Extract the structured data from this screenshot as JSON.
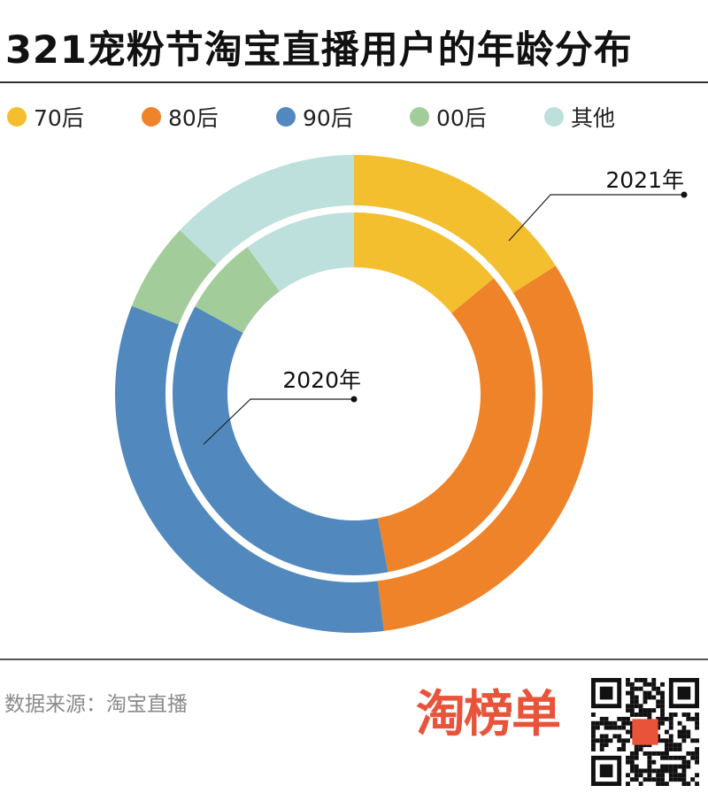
{
  "title": "321宠粉节淘宝直播用户的年龄分布",
  "chart_data": {
    "type": "pie",
    "subtype": "nested-donut",
    "title": "321宠粉节淘宝直播用户的年龄分布",
    "categories": [
      "70后",
      "80后",
      "90后",
      "00后",
      "其他"
    ],
    "colors": [
      "#f4bf2f",
      "#ee8329",
      "#5189be",
      "#a3cc9b",
      "#bde0dc"
    ],
    "series": [
      {
        "name": "2021年",
        "ring": "outer",
        "values": [
          16,
          32,
          33,
          6,
          13
        ]
      },
      {
        "name": "2020年",
        "ring": "inner",
        "values": [
          14,
          33,
          36,
          7,
          10
        ]
      }
    ],
    "legend": "top"
  },
  "footer": {
    "source": "数据来源：淘宝直播",
    "logo": "淘榜单"
  }
}
